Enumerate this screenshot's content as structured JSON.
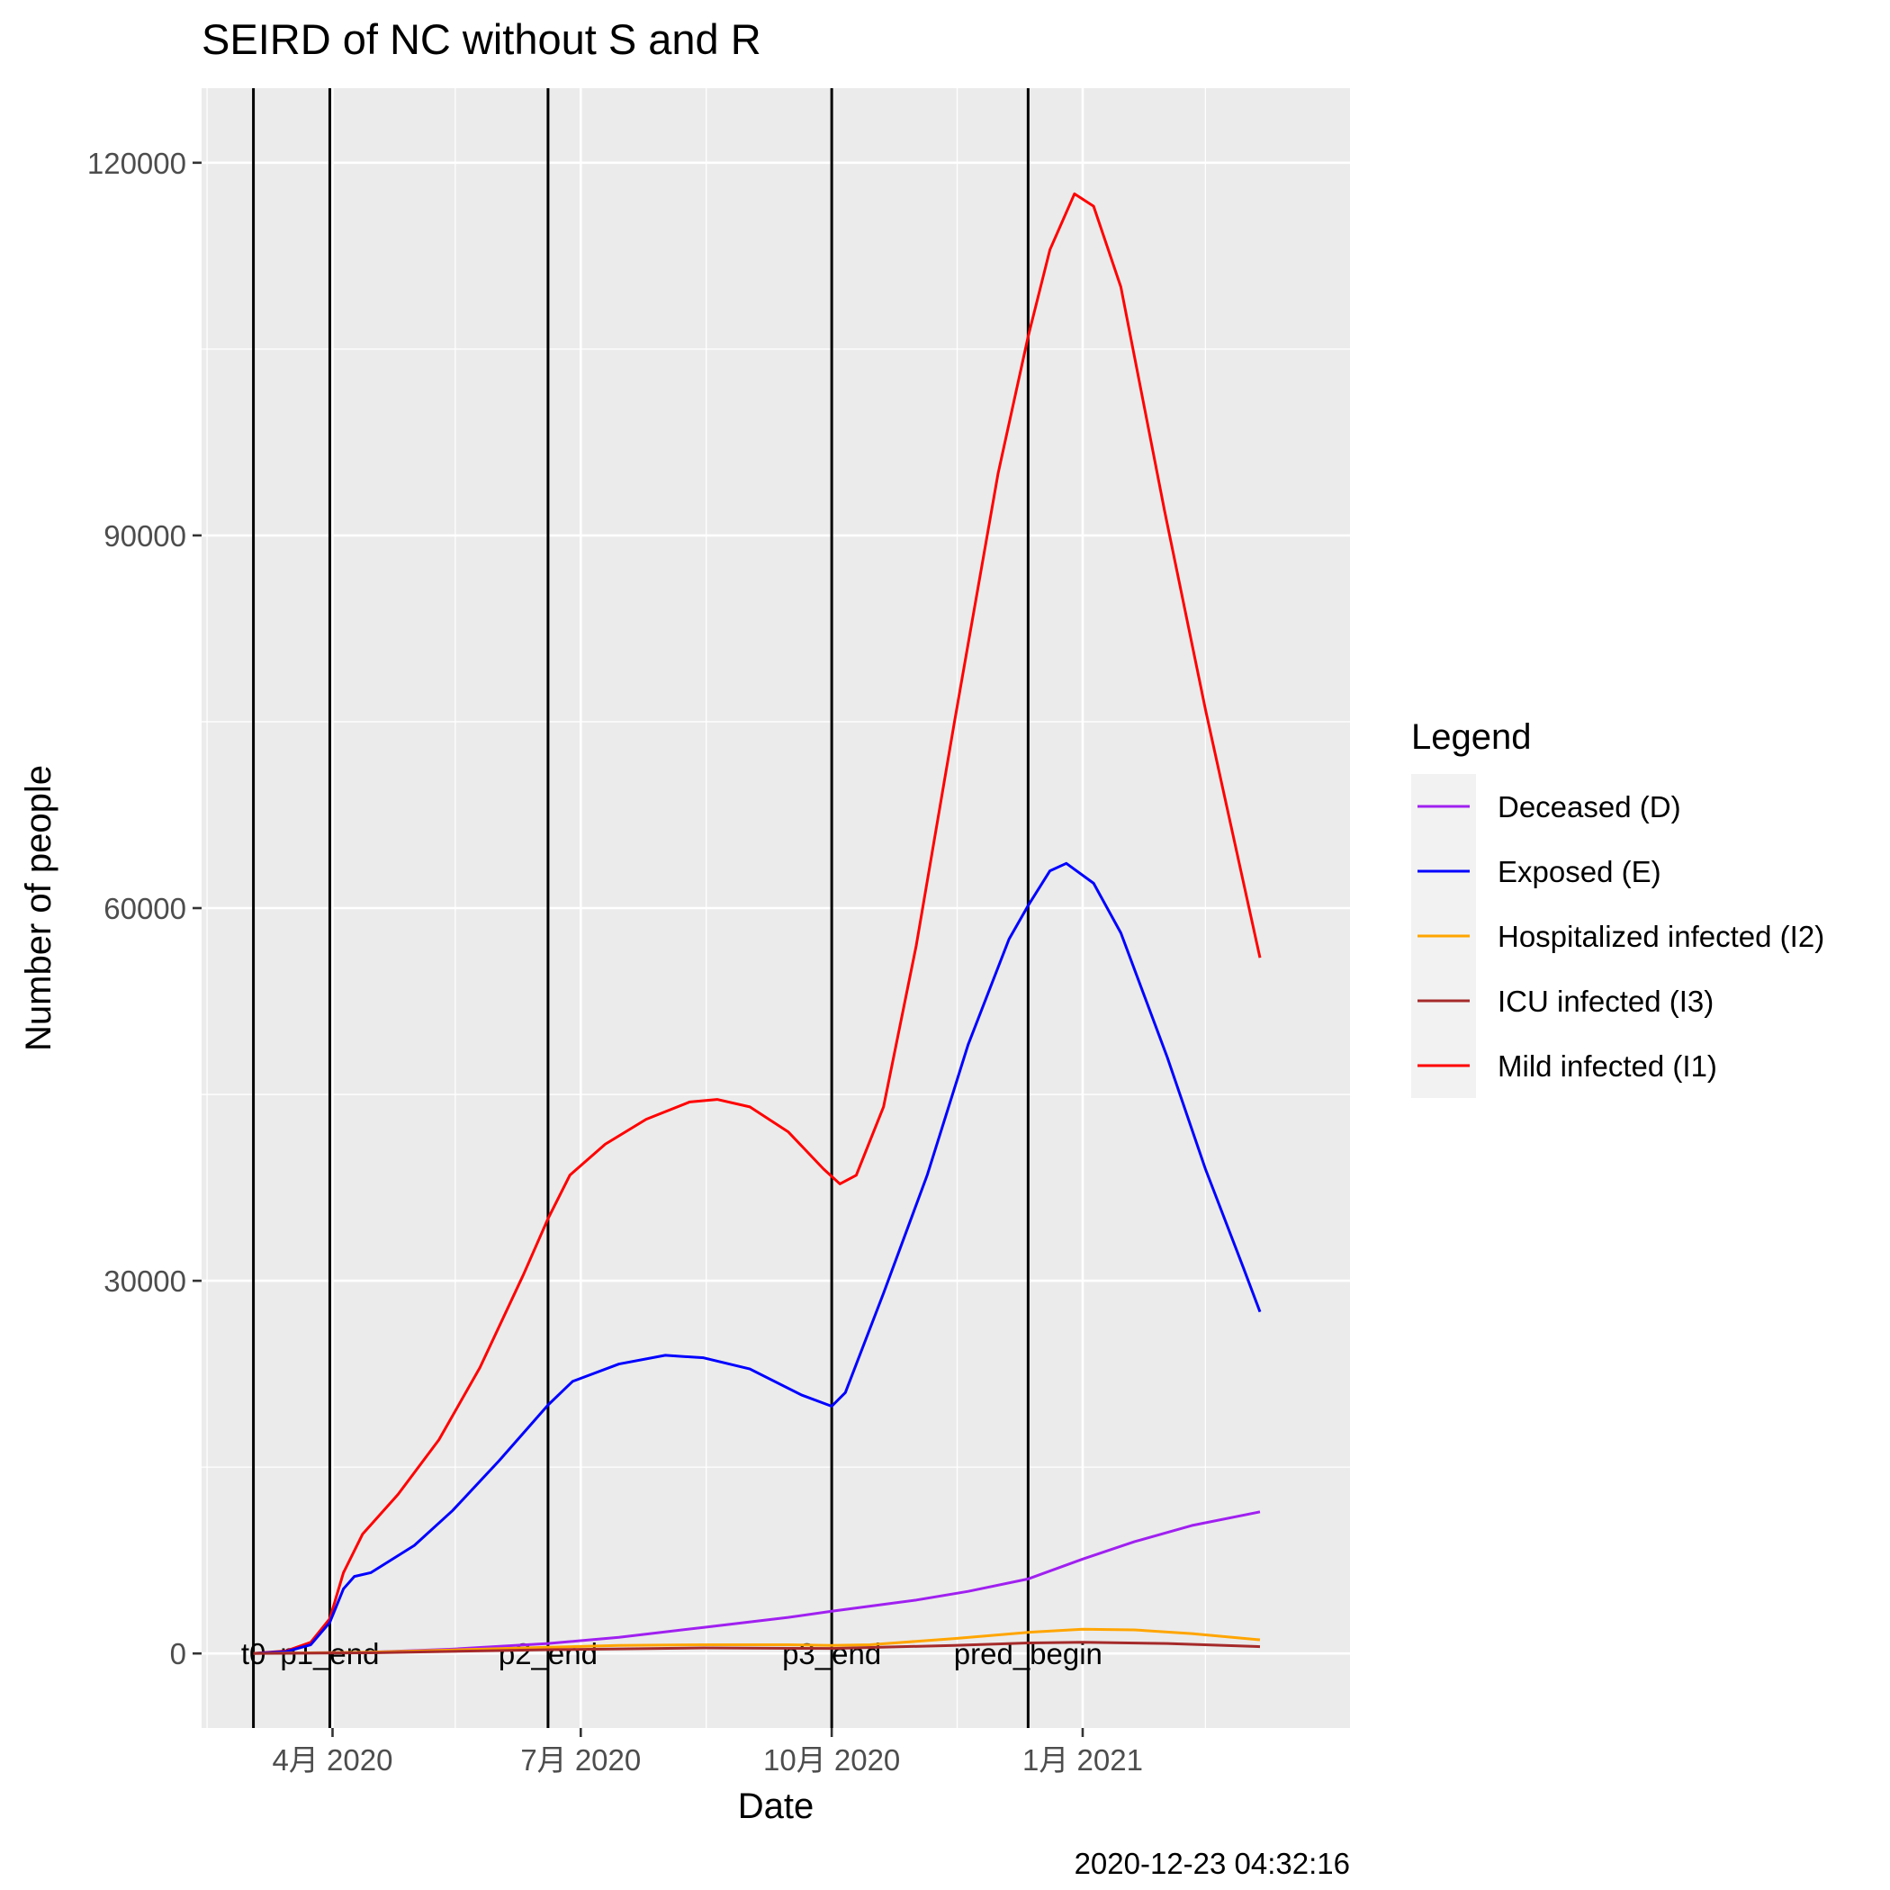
{
  "chart_data": {
    "type": "line",
    "title": "SEIRD of NC without S and R",
    "xlabel": "Date",
    "ylabel": "Number of people",
    "caption": "2020-12-23 04:32:16",
    "x_axis": {
      "type": "date",
      "range": [
        "2020-02-13",
        "2021-04-09"
      ],
      "ticks": [
        {
          "date": "2020-04-01",
          "label": "4月 2020"
        },
        {
          "date": "2020-07-01",
          "label": "7月 2020"
        },
        {
          "date": "2020-10-01",
          "label": "10月 2020"
        },
        {
          "date": "2021-01-01",
          "label": "1月 2021"
        }
      ],
      "minor_ticks": [
        "2020-02-15",
        "2020-05-16",
        "2020-08-16",
        "2020-11-16",
        "2021-02-15"
      ]
    },
    "y_axis": {
      "ylim": [
        -6000,
        126000
      ],
      "ticks": [
        0,
        30000,
        60000,
        90000,
        120000
      ],
      "tick_labels": [
        "0",
        "30000",
        "60000",
        "90000",
        "120000"
      ],
      "minor_ticks": [
        15000,
        45000,
        75000,
        105000
      ]
    },
    "grid": true,
    "vlines": [
      {
        "date": "2020-03-03",
        "label": "t0"
      },
      {
        "date": "2020-03-31",
        "label": "p1_end"
      },
      {
        "date": "2020-06-19",
        "label": "p2_end"
      },
      {
        "date": "2020-10-01",
        "label": "p3_end"
      },
      {
        "date": "2020-12-12",
        "label": "pred_begin"
      }
    ],
    "legend": {
      "title": "Legend",
      "position": "right",
      "entries": [
        {
          "name": "Deceased (D)",
          "color": "#a020f0"
        },
        {
          "name": "Exposed (E)",
          "color": "#0000ff"
        },
        {
          "name": "Hospitalized infected (I2)",
          "color": "#ffa500"
        },
        {
          "name": "ICU infected (I3)",
          "color": "#a52a2a"
        },
        {
          "name": "Mild infected (I1)",
          "color": "#ff0000"
        }
      ]
    },
    "series": [
      {
        "name": "Mild infected (I1)",
        "color": "#ff0000",
        "points": [
          [
            "2020-03-03",
            0
          ],
          [
            "2020-03-15",
            200
          ],
          [
            "2020-03-24",
            900
          ],
          [
            "2020-03-31",
            2800
          ],
          [
            "2020-04-05",
            6500
          ],
          [
            "2020-04-12",
            9600
          ],
          [
            "2020-04-25",
            12800
          ],
          [
            "2020-05-10",
            17200
          ],
          [
            "2020-05-25",
            23000
          ],
          [
            "2020-06-10",
            30500
          ],
          [
            "2020-06-19",
            35000
          ],
          [
            "2020-06-27",
            38500
          ],
          [
            "2020-07-10",
            41000
          ],
          [
            "2020-07-25",
            43000
          ],
          [
            "2020-08-10",
            44400
          ],
          [
            "2020-08-20",
            44600
          ],
          [
            "2020-09-01",
            44000
          ],
          [
            "2020-09-15",
            42000
          ],
          [
            "2020-09-28",
            39000
          ],
          [
            "2020-10-04",
            37800
          ],
          [
            "2020-10-10",
            38500
          ],
          [
            "2020-10-20",
            44000
          ],
          [
            "2020-11-01",
            57000
          ],
          [
            "2020-11-15",
            75000
          ],
          [
            "2020-12-01",
            95000
          ],
          [
            "2020-12-12",
            106000
          ],
          [
            "2020-12-20",
            113000
          ],
          [
            "2020-12-29",
            117500
          ],
          [
            "2021-01-05",
            116500
          ],
          [
            "2021-01-15",
            110000
          ],
          [
            "2021-01-31",
            92000
          ],
          [
            "2021-02-15",
            76000
          ],
          [
            "2021-03-01",
            62000
          ],
          [
            "2021-03-07",
            56000
          ]
        ]
      },
      {
        "name": "Exposed (E)",
        "color": "#0000ff",
        "points": [
          [
            "2020-03-03",
            0
          ],
          [
            "2020-03-15",
            150
          ],
          [
            "2020-03-24",
            700
          ],
          [
            "2020-03-31",
            2500
          ],
          [
            "2020-04-05",
            5200
          ],
          [
            "2020-04-09",
            6200
          ],
          [
            "2020-04-15",
            6500
          ],
          [
            "2020-05-01",
            8700
          ],
          [
            "2020-05-15",
            11500
          ],
          [
            "2020-06-01",
            15500
          ],
          [
            "2020-06-19",
            20000
          ],
          [
            "2020-06-28",
            21900
          ],
          [
            "2020-07-15",
            23300
          ],
          [
            "2020-08-01",
            24000
          ],
          [
            "2020-08-15",
            23800
          ],
          [
            "2020-09-01",
            22900
          ],
          [
            "2020-09-20",
            20800
          ],
          [
            "2020-10-01",
            19900
          ],
          [
            "2020-10-06",
            21000
          ],
          [
            "2020-10-20",
            29000
          ],
          [
            "2020-11-05",
            38500
          ],
          [
            "2020-11-20",
            49000
          ],
          [
            "2020-12-05",
            57500
          ],
          [
            "2020-12-12",
            60200
          ],
          [
            "2020-12-20",
            63000
          ],
          [
            "2020-12-26",
            63600
          ],
          [
            "2021-01-05",
            62000
          ],
          [
            "2021-01-15",
            58000
          ],
          [
            "2021-02-01",
            48000
          ],
          [
            "2021-02-15",
            39000
          ],
          [
            "2021-03-01",
            31000
          ],
          [
            "2021-03-07",
            27500
          ]
        ]
      },
      {
        "name": "Deceased (D)",
        "color": "#a020f0",
        "points": [
          [
            "2020-03-03",
            0
          ],
          [
            "2020-04-15",
            100
          ],
          [
            "2020-05-15",
            350
          ],
          [
            "2020-06-19",
            800
          ],
          [
            "2020-07-15",
            1300
          ],
          [
            "2020-08-15",
            2100
          ],
          [
            "2020-09-15",
            2900
          ],
          [
            "2020-10-01",
            3400
          ],
          [
            "2020-11-01",
            4300
          ],
          [
            "2020-11-20",
            5000
          ],
          [
            "2020-12-12",
            6000
          ],
          [
            "2021-01-01",
            7600
          ],
          [
            "2021-01-20",
            9000
          ],
          [
            "2021-02-10",
            10300
          ],
          [
            "2021-03-07",
            11400
          ]
        ]
      },
      {
        "name": "Hospitalized infected (I2)",
        "color": "#ffa500",
        "points": [
          [
            "2020-03-03",
            0
          ],
          [
            "2020-04-15",
            100
          ],
          [
            "2020-06-19",
            500
          ],
          [
            "2020-07-15",
            650
          ],
          [
            "2020-08-15",
            700
          ],
          [
            "2020-09-15",
            700
          ],
          [
            "2020-10-01",
            650
          ],
          [
            "2020-10-15",
            700
          ],
          [
            "2020-11-15",
            1200
          ],
          [
            "2020-12-12",
            1700
          ],
          [
            "2021-01-01",
            1950
          ],
          [
            "2021-01-20",
            1900
          ],
          [
            "2021-02-10",
            1600
          ],
          [
            "2021-03-07",
            1100
          ]
        ]
      },
      {
        "name": "ICU infected (I3)",
        "color": "#a52a2a",
        "points": [
          [
            "2020-03-03",
            0
          ],
          [
            "2020-04-15",
            50
          ],
          [
            "2020-06-19",
            300
          ],
          [
            "2020-08-15",
            450
          ],
          [
            "2020-10-01",
            400
          ],
          [
            "2020-11-15",
            650
          ],
          [
            "2020-12-12",
            850
          ],
          [
            "2021-01-01",
            900
          ],
          [
            "2021-02-01",
            800
          ],
          [
            "2021-03-07",
            550
          ]
        ]
      }
    ]
  }
}
